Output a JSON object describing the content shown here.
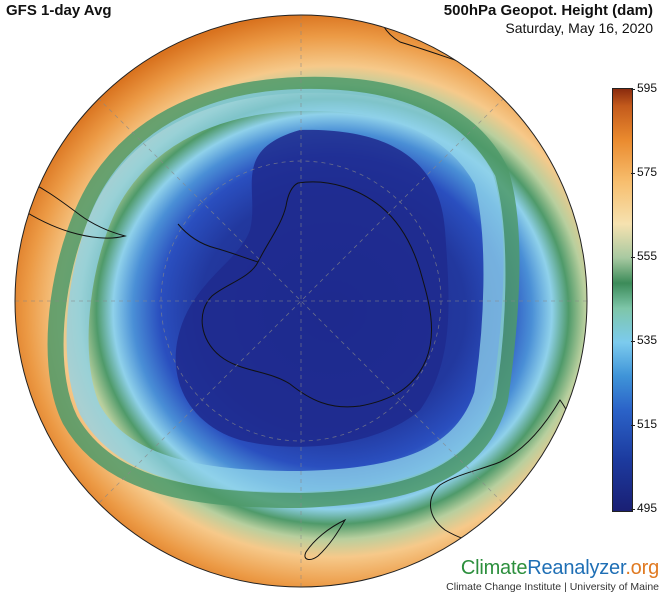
{
  "header": {
    "model_label": "GFS 1-day Avg",
    "variable_label": "500hPa Geopot. Height (dam)",
    "date_label": "Saturday, May 16, 2020"
  },
  "colorbar": {
    "ticks": [
      "595",
      "575",
      "555",
      "535",
      "515",
      "495"
    ],
    "colors": [
      "#8a2b0e",
      "#ea8a2e",
      "#f6e2b0",
      "#3c8b59",
      "#7ccbee",
      "#2b63c8",
      "#1a1f74"
    ]
  },
  "map": {
    "projection": "orthographic, south polar",
    "field_colors": {
      "ocean_high": "#e07a2a",
      "ocean_mid": "#f6c98a",
      "jet_green": "#4f9a6a",
      "jet_light": "#8fd1ea",
      "trough": "#2a4fbf",
      "core": "#1f2a8e"
    }
  },
  "branding": {
    "logo_climate": "Climate",
    "logo_reanalyzer": "Reanalyzer",
    "logo_org": ".org",
    "institute": "Climate Change Institute | University of Maine"
  }
}
